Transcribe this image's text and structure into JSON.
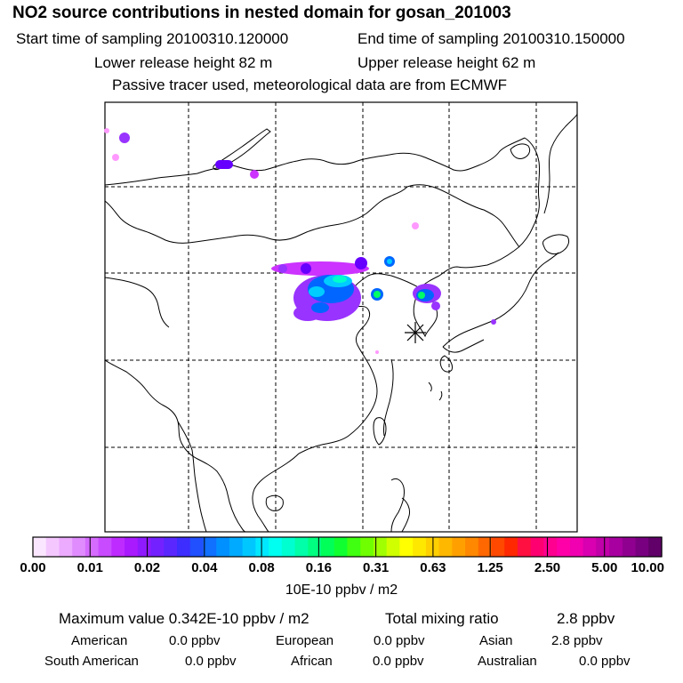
{
  "header": {
    "title": "NO2 source contributions in nested domain for gosan_201003",
    "start_time": "Start time of sampling 20100310.120000",
    "end_time": "End time of sampling 20100310.150000",
    "lower_release": "Lower release height   82 m",
    "upper_release": "Upper release height   62 m",
    "note": "Passive tracer used, meteorological data are from ECMWF"
  },
  "map": {
    "receptor_marker": "asterisk-icon",
    "plume_colors": [
      "#ff99ff",
      "#cc33ff",
      "#9933ff",
      "#6600ff",
      "#0066ff",
      "#00ccff",
      "#00ffcc",
      "#00ff66"
    ]
  },
  "colorbar": {
    "colors": [
      "#fbe6ff",
      "#f4c8ff",
      "#ecabff",
      "#e08cff",
      "#d56bff",
      "#c94bff",
      "#be2bff",
      "#a91aff",
      "#8f1aff",
      "#7322ff",
      "#5a28ff",
      "#3d2dff",
      "#2050ff",
      "#1070ff",
      "#0090ff",
      "#00aaff",
      "#00c8ff",
      "#00e8ff",
      "#00fff0",
      "#00ffd0",
      "#00ffa8",
      "#00ff80",
      "#00ff58",
      "#10ff30",
      "#40ff10",
      "#70ff00",
      "#a0ff00",
      "#d0ff00",
      "#ffff00",
      "#ffe800",
      "#ffd000",
      "#ffb800",
      "#ffa000",
      "#ff8800",
      "#ff6800",
      "#ff4800",
      "#ff2800",
      "#ff1040",
      "#ff0070",
      "#ff0090",
      "#ff00a8",
      "#f000b0",
      "#d800b0",
      "#c000a8",
      "#a800a0",
      "#900090",
      "#780080",
      "#600068"
    ],
    "ticks": [
      "0.00",
      "0.01",
      "0.02",
      "0.04",
      "0.08",
      "0.16",
      "0.31",
      "0.63",
      "1.25",
      "2.50",
      "5.00",
      "10.00"
    ],
    "unit": "10E-10 ppbv / m2"
  },
  "stats": {
    "max_label": "Maximum value  0.342E-10 ppbv / m2",
    "total_label": "Total mixing ratio",
    "total_value": "2.8 ppbv",
    "regions": [
      {
        "name": "American",
        "value": "0.0 ppbv"
      },
      {
        "name": "European",
        "value": "0.0 ppbv"
      },
      {
        "name": "Asian",
        "value": "2.8 ppbv"
      },
      {
        "name": "South American",
        "value": "0.0 ppbv"
      },
      {
        "name": "African",
        "value": "0.0 ppbv"
      },
      {
        "name": "Australian",
        "value": "0.0 ppbv"
      }
    ]
  }
}
